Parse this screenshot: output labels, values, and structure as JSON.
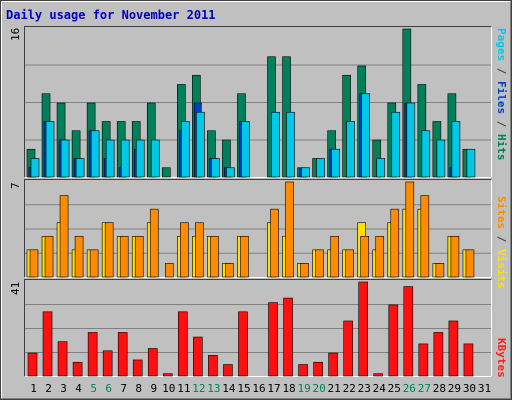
{
  "chart_data": [
    {
      "type": "bar",
      "panel": "top",
      "title": "Daily usage for November 2011",
      "y_max_label": "16",
      "right_label_parts": [
        {
          "text": "Pages",
          "color": "#00c8e6"
        },
        {
          "text": " / ",
          "color": "#404040"
        },
        {
          "text": "Files",
          "color": "#0040c8"
        },
        {
          "text": " / ",
          "color": "#404040"
        },
        {
          "text": "Hits",
          "color": "#00805a"
        }
      ],
      "ylim": [
        0,
        16
      ],
      "categories": [
        "1",
        "2",
        "3",
        "4",
        "5",
        "6",
        "7",
        "8",
        "9",
        "10",
        "11",
        "12",
        "13",
        "14",
        "15",
        "16",
        "17",
        "18",
        "19",
        "20",
        "21",
        "22",
        "23",
        "24",
        "25",
        "26",
        "27",
        "28",
        "29",
        "30",
        "31"
      ],
      "series": [
        {
          "name": "Hits",
          "color": "#00805a",
          "values": [
            3,
            9,
            8,
            5,
            8,
            6,
            6,
            6,
            8,
            1,
            10,
            11,
            5,
            4,
            9,
            0,
            13,
            13,
            1,
            2,
            5,
            11,
            12,
            4,
            8,
            16,
            10,
            6,
            9,
            3,
            0
          ]
        },
        {
          "name": "Files",
          "color": "#0040c8",
          "values": [
            1,
            6,
            4,
            2,
            5,
            2,
            1,
            3,
            0,
            0,
            5,
            8,
            2,
            1,
            6,
            0,
            0,
            0,
            1,
            0,
            3,
            0,
            9,
            0,
            0,
            8,
            0,
            0,
            1,
            0,
            0
          ]
        },
        {
          "name": "Pages",
          "color": "#00c8e6",
          "values": [
            2,
            6,
            4,
            2,
            5,
            4,
            4,
            4,
            4,
            0,
            6,
            7,
            2,
            1,
            6,
            0,
            7,
            7,
            1,
            2,
            3,
            6,
            9,
            2,
            7,
            8,
            5,
            4,
            6,
            3,
            0
          ]
        }
      ]
    },
    {
      "type": "bar",
      "panel": "middle",
      "y_max_label": "7",
      "right_label_parts": [
        {
          "text": "Sites",
          "color": "#ff8c00"
        },
        {
          "text": " / ",
          "color": "#404040"
        },
        {
          "text": "Visits",
          "color": "#ffe000"
        }
      ],
      "ylim": [
        0,
        7
      ],
      "categories": [
        "1",
        "2",
        "3",
        "4",
        "5",
        "6",
        "7",
        "8",
        "9",
        "10",
        "11",
        "12",
        "13",
        "14",
        "15",
        "16",
        "17",
        "18",
        "19",
        "20",
        "21",
        "22",
        "23",
        "24",
        "25",
        "26",
        "27",
        "28",
        "29",
        "30",
        "31"
      ],
      "series": [
        {
          "name": "Visits",
          "color": "#ffe000",
          "values": [
            2,
            3,
            4,
            2,
            2,
            4,
            3,
            3,
            4,
            0,
            3,
            3,
            3,
            1,
            3,
            0,
            4,
            3,
            1,
            2,
            2,
            2,
            4,
            2,
            4,
            5,
            5,
            1,
            3,
            2,
            0
          ]
        },
        {
          "name": "Sites",
          "color": "#ff8c00",
          "values": [
            2,
            3,
            6,
            3,
            2,
            4,
            3,
            3,
            5,
            1,
            4,
            4,
            3,
            1,
            3,
            0,
            5,
            7,
            1,
            2,
            3,
            2,
            3,
            3,
            5,
            7,
            6,
            1,
            3,
            2,
            0
          ]
        }
      ]
    },
    {
      "type": "bar",
      "panel": "bottom",
      "y_max_label": "41",
      "right_label_parts": [
        {
          "text": "KBytes",
          "color": "#ff2020"
        }
      ],
      "ylim": [
        0,
        41
      ],
      "categories": [
        "1",
        "2",
        "3",
        "4",
        "5",
        "6",
        "7",
        "8",
        "9",
        "10",
        "11",
        "12",
        "13",
        "14",
        "15",
        "16",
        "17",
        "18",
        "19",
        "20",
        "21",
        "22",
        "23",
        "24",
        "25",
        "26",
        "27",
        "28",
        "29",
        "30",
        "31"
      ],
      "series": [
        {
          "name": "KBytes",
          "color": "#ff1010",
          "values": [
            10,
            28,
            15,
            6,
            19,
            11,
            19,
            7,
            12,
            1,
            28,
            17,
            9,
            5,
            28,
            0,
            32,
            34,
            5,
            6,
            10,
            24,
            41,
            1,
            31,
            39,
            14,
            19,
            24,
            14,
            0
          ]
        }
      ]
    }
  ],
  "x_labels": [
    {
      "text": "1",
      "color": "#000000"
    },
    {
      "text": "2",
      "color": "#000000"
    },
    {
      "text": "3",
      "color": "#000000"
    },
    {
      "text": "4",
      "color": "#000000"
    },
    {
      "text": "5",
      "color": "#00805a"
    },
    {
      "text": "6",
      "color": "#00805a"
    },
    {
      "text": "7",
      "color": "#000000"
    },
    {
      "text": "8",
      "color": "#000000"
    },
    {
      "text": "9",
      "color": "#000000"
    },
    {
      "text": "10",
      "color": "#000000"
    },
    {
      "text": "11",
      "color": "#000000"
    },
    {
      "text": "12",
      "color": "#00805a"
    },
    {
      "text": "13",
      "color": "#00805a"
    },
    {
      "text": "14",
      "color": "#000000"
    },
    {
      "text": "15",
      "color": "#000000"
    },
    {
      "text": "16",
      "color": "#000000"
    },
    {
      "text": "17",
      "color": "#000000"
    },
    {
      "text": "18",
      "color": "#000000"
    },
    {
      "text": "19",
      "color": "#00805a"
    },
    {
      "text": "20",
      "color": "#00805a"
    },
    {
      "text": "21",
      "color": "#000000"
    },
    {
      "text": "22",
      "color": "#000000"
    },
    {
      "text": "23",
      "color": "#000000"
    },
    {
      "text": "24",
      "color": "#000000"
    },
    {
      "text": "25",
      "color": "#000000"
    },
    {
      "text": "26",
      "color": "#00805a"
    },
    {
      "text": "27",
      "color": "#00805a"
    },
    {
      "text": "28",
      "color": "#000000"
    },
    {
      "text": "29",
      "color": "#000000"
    },
    {
      "text": "30",
      "color": "#000000"
    },
    {
      "text": "31",
      "color": "#000000"
    }
  ],
  "colors": {
    "background": "#c0c0c0",
    "grid": "#808080",
    "frame_dark": "#404040",
    "frame_light": "#ffffff",
    "title": "#0000c0"
  }
}
